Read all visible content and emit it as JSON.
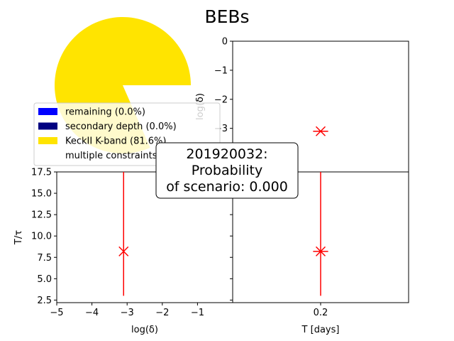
{
  "title": "BEBs",
  "pie": {
    "slices": [
      {
        "label": "remaining (0.0%)",
        "color": "#0000ff",
        "fraction": 0.0
      },
      {
        "label": "secondary depth (0.0%)",
        "color": "#000080",
        "fraction": 0.0
      },
      {
        "label": "KeckII K-band (81.6%)",
        "color": "#ffe400",
        "fraction": 0.816
      },
      {
        "label": "multiple constraints",
        "color": "",
        "fraction": 0.184
      }
    ]
  },
  "annotation": {
    "lines": [
      "201920032:",
      "Probability",
      "of scenario: 0.000"
    ]
  },
  "chart_data": [
    {
      "type": "scatter",
      "name": "top-right",
      "xlabel": "",
      "ylabel": "log(δ)",
      "ylim": [
        0,
        -4.5
      ],
      "yticks": [
        0,
        -1,
        -2,
        -3
      ],
      "ytick_labels": [
        "0",
        "−1",
        "−2",
        "−3"
      ],
      "points": [
        {
          "x": 0.2,
          "y": -3.1,
          "xerr": 0.03
        }
      ],
      "color": "#ff0000"
    },
    {
      "type": "scatter",
      "name": "bottom-left",
      "xlabel": "log(δ)",
      "ylabel": "T/τ",
      "xlim": [
        -5,
        0
      ],
      "ylim": [
        2.2,
        17.5
      ],
      "xticks": [
        -5,
        -4,
        -3,
        -2,
        -1
      ],
      "xtick_labels": [
        "−5",
        "−4",
        "−3",
        "−2",
        "−1"
      ],
      "yticks": [
        2.5,
        5.0,
        7.5,
        10.0,
        12.5,
        15.0,
        17.5
      ],
      "ytick_labels": [
        "2.5",
        "5.0",
        "7.5",
        "10.0",
        "12.5",
        "15.0",
        "17.5"
      ],
      "points": [
        {
          "x": -3.1,
          "y": 8.2,
          "yerr_low": 3.0,
          "yerr_high": 17.5
        }
      ],
      "color": "#ff0000"
    },
    {
      "type": "scatter",
      "name": "bottom-right",
      "xlabel": "T [days]",
      "ylabel": "",
      "xticks": [
        0.2
      ],
      "xtick_labels": [
        "0.2"
      ],
      "ylim": [
        2.2,
        17.5
      ],
      "points": [
        {
          "x": 0.2,
          "y": 8.2,
          "xerr": 0.03,
          "yerr_low": 3.0,
          "yerr_high": 17.5
        }
      ],
      "color": "#ff0000"
    }
  ]
}
